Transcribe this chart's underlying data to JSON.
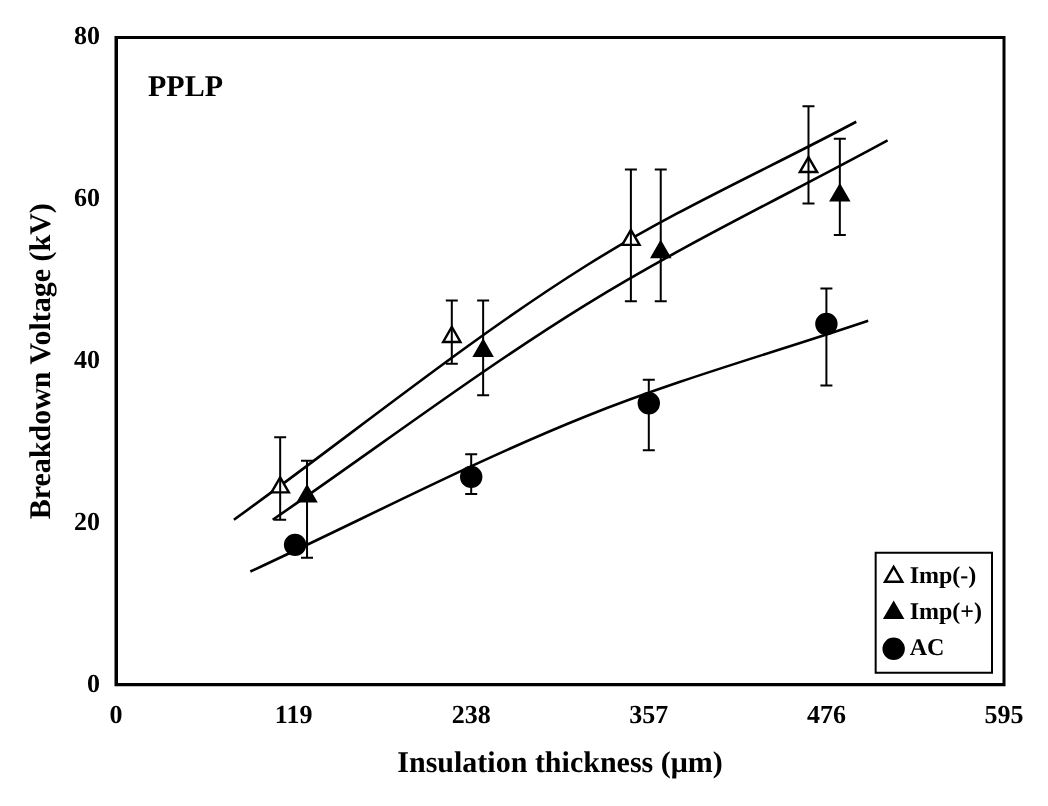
{
  "chart_data": {
    "type": "scatter",
    "xlabel": "Insulation thickness (μm)",
    "ylabel": "Breakdown Voltage (kV)",
    "annotations": [
      "PPLP"
    ],
    "xlim": [
      0,
      595
    ],
    "xticks": [
      0,
      119,
      238,
      357,
      476,
      595
    ],
    "ylim": [
      0,
      80
    ],
    "yticks": [
      0,
      20,
      40,
      60,
      80
    ],
    "grid": false,
    "legend": "bottom right",
    "series": [
      {
        "name": "Imp(-)",
        "marker": "triangle",
        "color": "#ffffff",
        "x": [
          110,
          225,
          345,
          464
        ],
        "values": [
          24.4,
          43,
          55,
          64
        ],
        "errors": [
          [
            20.4,
            30.6
          ],
          [
            39.7,
            47.5
          ],
          [
            47.4,
            63.7
          ],
          [
            59.5,
            71.5
          ]
        ]
      },
      {
        "name": "Imp(+)",
        "marker": "triangle",
        "color": "#000000",
        "x": [
          128,
          246,
          365,
          485
        ],
        "values": [
          23.3,
          41.3,
          53.5,
          60.5
        ],
        "errors": [
          [
            15.7,
            27.7
          ],
          [
            35.8,
            47.5
          ],
          [
            47.4,
            63.7
          ],
          [
            55.6,
            67.5
          ]
        ]
      },
      {
        "name": "AC",
        "marker": "circle",
        "color": "#000000",
        "x": [
          120,
          238,
          357,
          476
        ],
        "values": [
          17.3,
          25.7,
          34.8,
          44.6
        ],
        "errors": [
          null,
          [
            23.6,
            28.5
          ],
          [
            29,
            37.7
          ],
          [
            37,
            49
          ]
        ]
      },
      {
        "type": "line",
        "marker": "none",
        "color": "#000000",
        "x": [
          79,
          315,
          496
        ],
        "values": [
          20.4,
          51.8,
          69.6
        ]
      },
      {
        "type": "line",
        "marker": "none",
        "color": "#000000",
        "x": [
          105,
          315,
          517
        ],
        "values": [
          20.4,
          47,
          67.3
        ]
      },
      {
        "type": "line",
        "marker": "none",
        "color": "#000000",
        "x": [
          90,
          315,
          504
        ],
        "values": [
          14,
          33.2,
          45
        ]
      }
    ]
  }
}
